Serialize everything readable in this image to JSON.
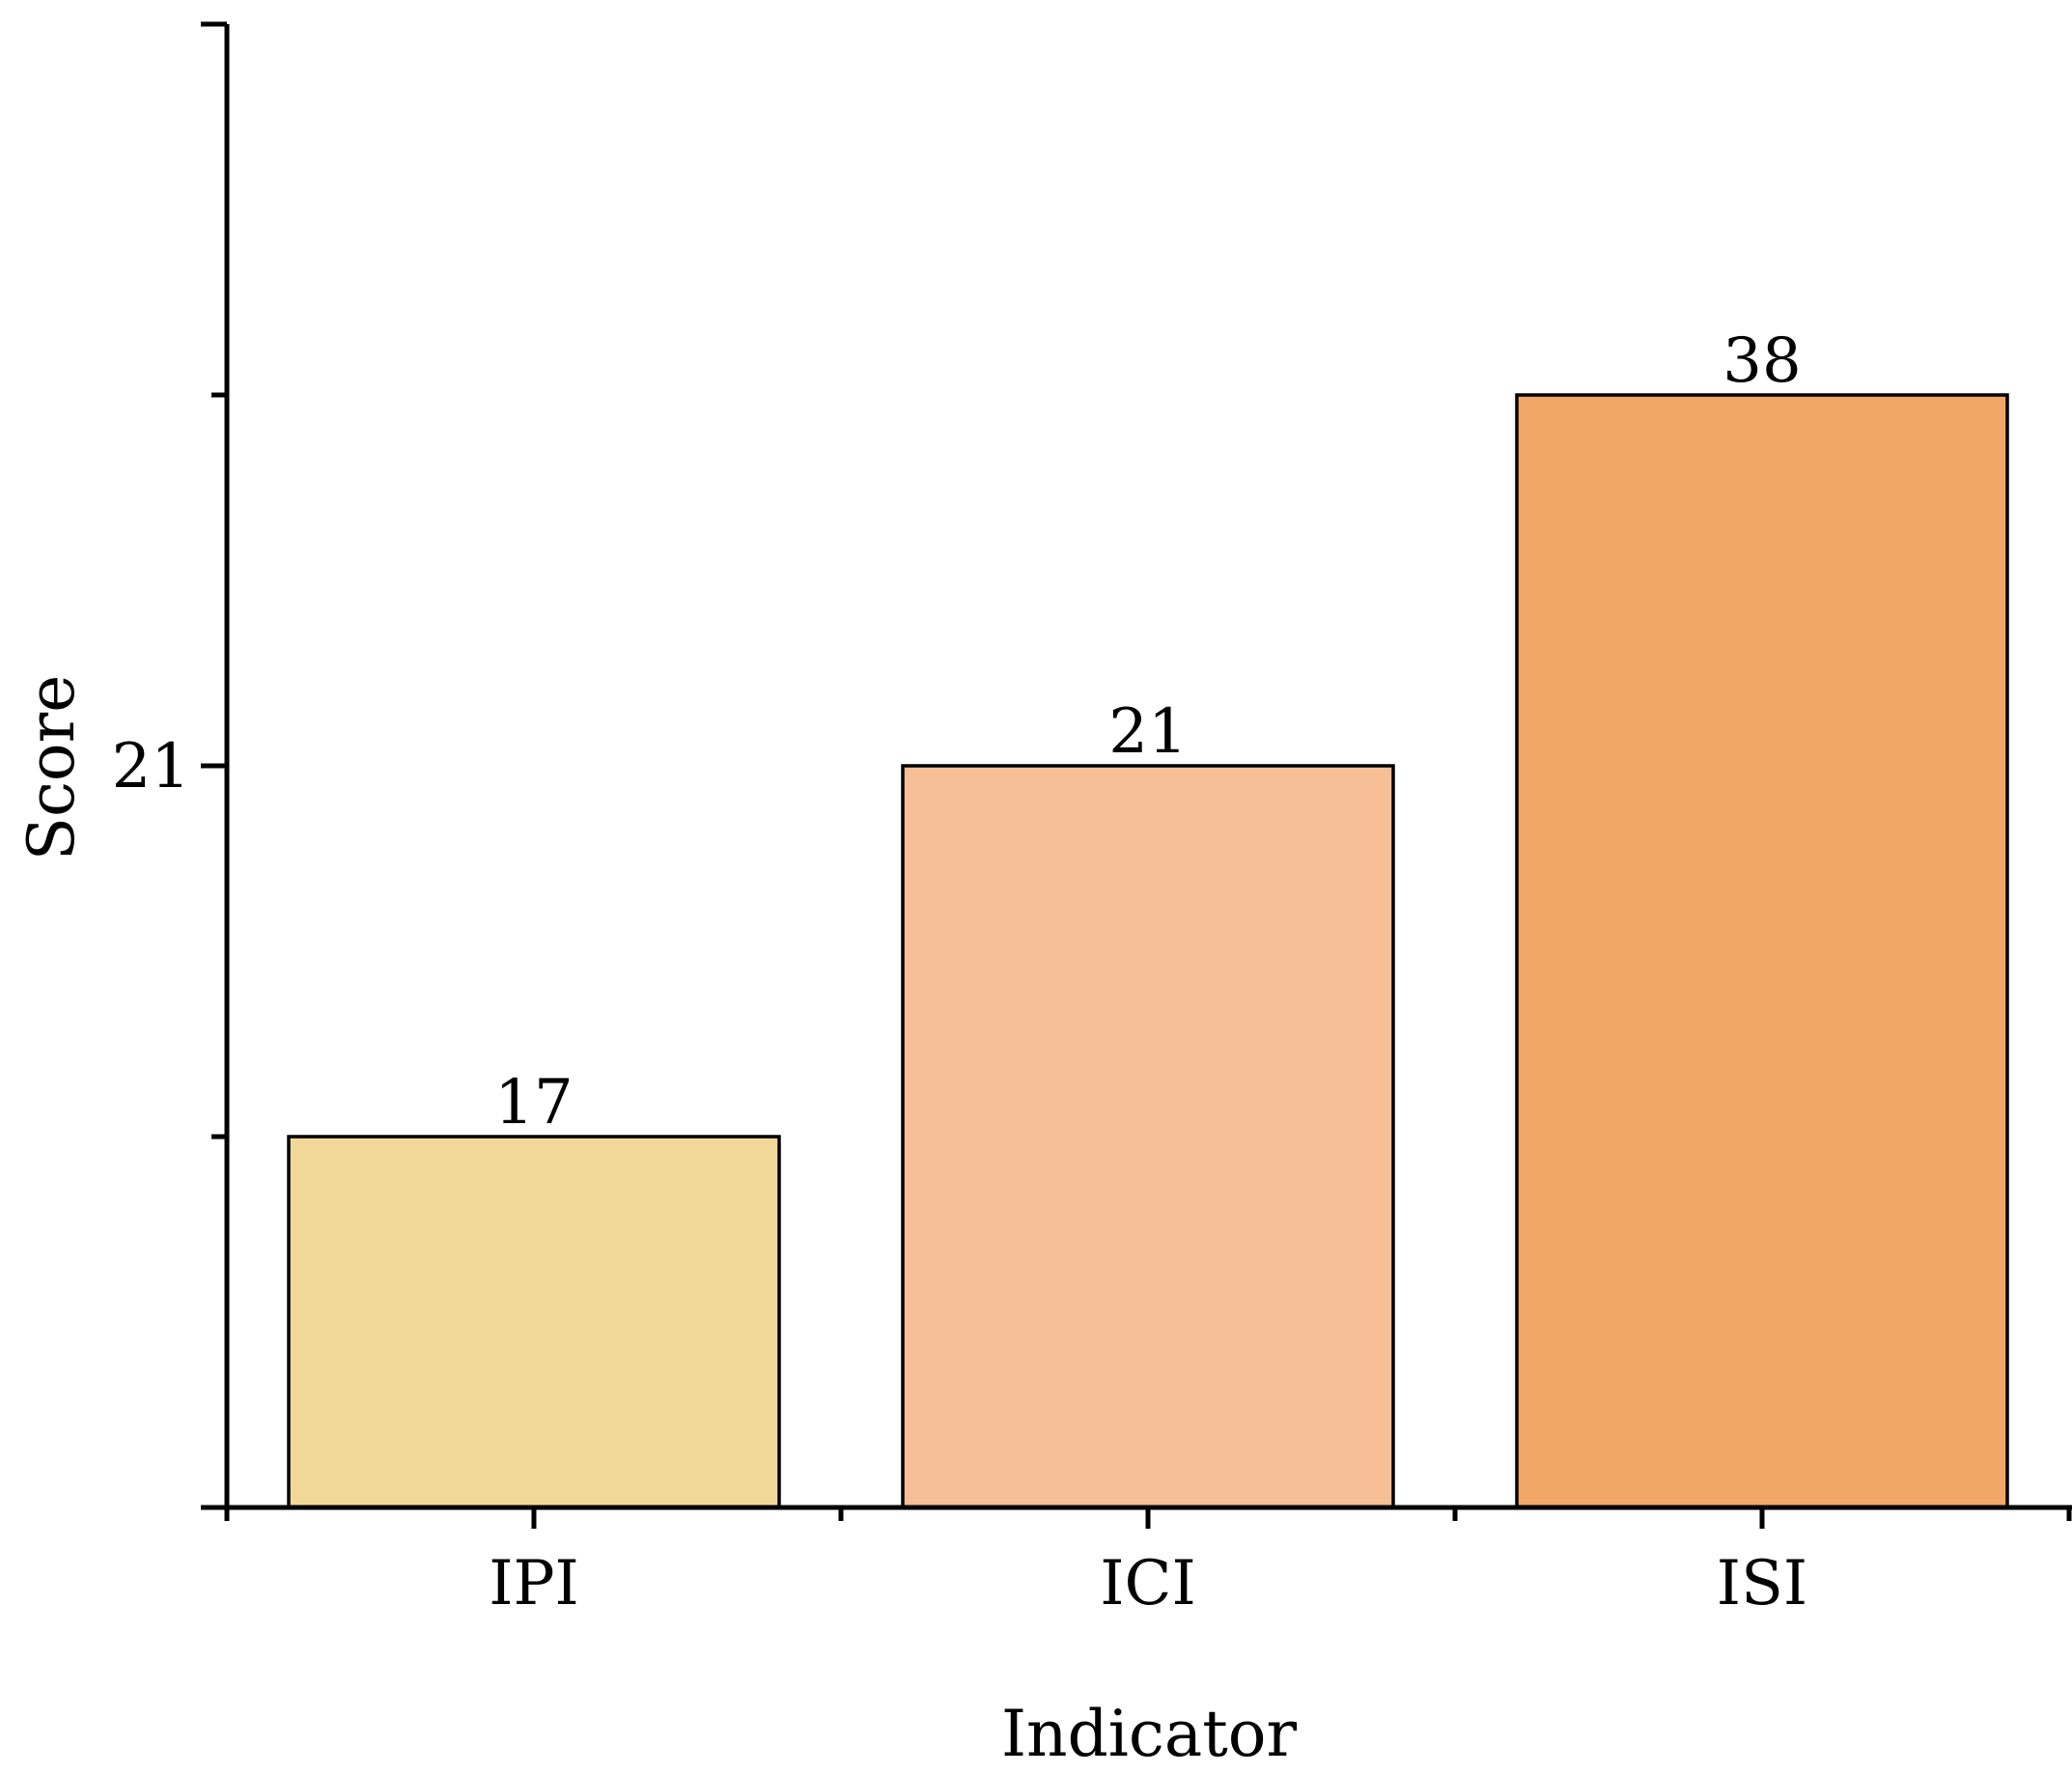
{
  "chart_data": {
    "type": "bar",
    "categories": [
      "IPI",
      "ICI",
      "ISI"
    ],
    "values": [
      17,
      21,
      38
    ],
    "data_labels": [
      "17",
      "21",
      "38"
    ],
    "bar_colors": [
      "#F2D898",
      "#F7BF95",
      "#F2A766"
    ],
    "title": "",
    "xlabel": "Indicator",
    "ylabel": "Score",
    "y_tick_labels": [
      {
        "value": 21,
        "label": "21"
      }
    ],
    "y_minor_tick_values": [
      17,
      38
    ],
    "y_axis_breaks": [
      0,
      17,
      21,
      38,
      55
    ],
    "grid": false,
    "legend": "none"
  }
}
